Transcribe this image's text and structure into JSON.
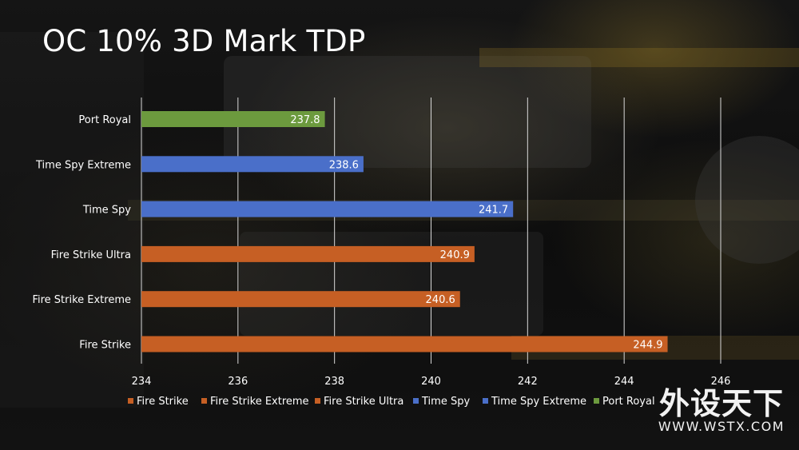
{
  "title": "OC 10% 3D Mark TDP",
  "watermark": {
    "cn": "外设天下",
    "en": "WWW.WSTX.COM"
  },
  "colors": {
    "orange": "#c65f24",
    "blue": "#4a6fc9",
    "green": "#6c9a3e",
    "gridline": "#d9d9d9",
    "text": "#ffffff"
  },
  "chart_data": {
    "type": "bar",
    "orientation": "horizontal",
    "title": "OC 10% 3D Mark TDP",
    "categories": [
      "Port Royal",
      "Time Spy Extreme",
      "Time Spy",
      "Fire Strike Ultra",
      "Fire Strike Extreme",
      "Fire Strike"
    ],
    "values": [
      237.8,
      238.6,
      241.7,
      240.9,
      240.6,
      244.9
    ],
    "bar_series": [
      "Port Royal",
      "Time Spy Extreme",
      "Time Spy",
      "Fire Strike Ultra",
      "Fire Strike Extreme",
      "Fire Strike"
    ],
    "xlim": [
      234,
      246
    ],
    "xticks": [
      234,
      236,
      238,
      240,
      242,
      244,
      246
    ],
    "grid": "vertical",
    "legend_position": "bottom",
    "series": [
      {
        "name": "Fire Strike",
        "color": "#c65f24"
      },
      {
        "name": "Fire Strike Extreme",
        "color": "#c65f24"
      },
      {
        "name": "Fire Strike Ultra",
        "color": "#c65f24"
      },
      {
        "name": "Time Spy",
        "color": "#4a6fc9"
      },
      {
        "name": "Time Spy Extreme",
        "color": "#4a6fc9"
      },
      {
        "name": "Port Royal",
        "color": "#6c9a3e"
      }
    ]
  }
}
